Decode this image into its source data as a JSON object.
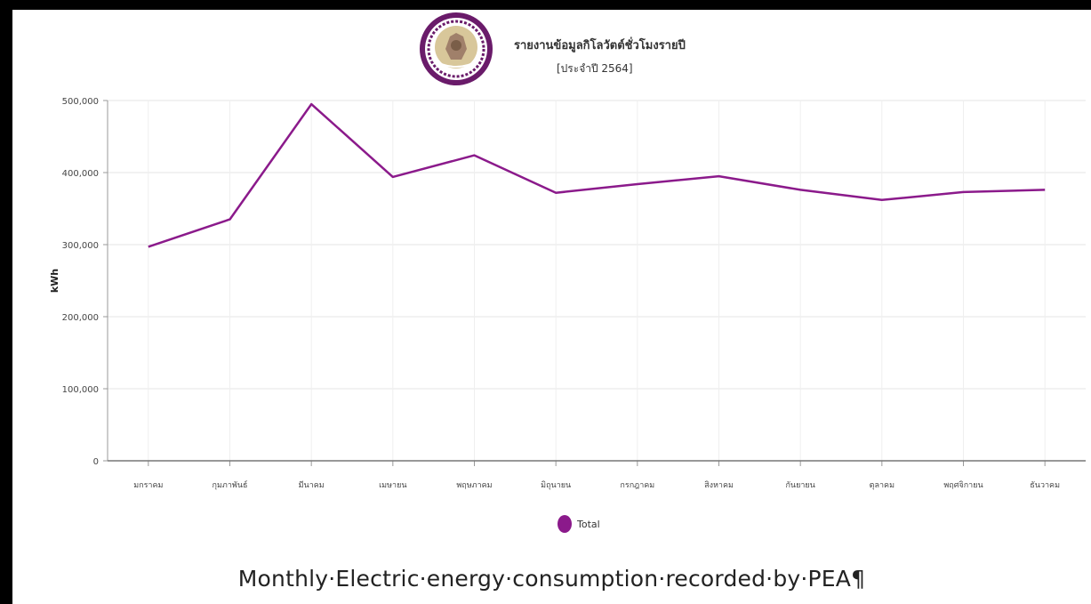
{
  "chart_data": {
    "type": "line",
    "title": "รายงานข้อมูลกิโลวัตต์ชั่วโมงรายปี",
    "subtitle": "[ประจำปี 2564]",
    "xlabel": "",
    "ylabel": "kWh",
    "ylim": [
      0,
      500000
    ],
    "yticks": [
      "0",
      "100,000",
      "200,000",
      "300,000",
      "400,000",
      "500,000"
    ],
    "ytick_values": [
      0,
      100000,
      200000,
      300000,
      400000,
      500000
    ],
    "categories": [
      "มกราคม",
      "กุมภาพันธ์",
      "มีนาคม",
      "เมษายน",
      "พฤษภาคม",
      "มิถุนายน",
      "กรกฎาคม",
      "สิงหาคม",
      "กันยายน",
      "ตุลาคม",
      "พฤศจิกายน",
      "ธันวาคม"
    ],
    "series": [
      {
        "name": "Total",
        "color": "#8b1a8b",
        "values": [
          297000,
          335000,
          495000,
          394000,
          424000,
          372000,
          384000,
          395000,
          376000,
          362000,
          373000,
          376000
        ]
      }
    ],
    "grid": true,
    "legend_position": "bottom-center"
  },
  "logo": {
    "icon": "pea-emblem-logo",
    "ring_color": "#6a1b6a"
  },
  "caption": "Monthly·Electric·energy·consumption·recorded·by·PEA¶"
}
